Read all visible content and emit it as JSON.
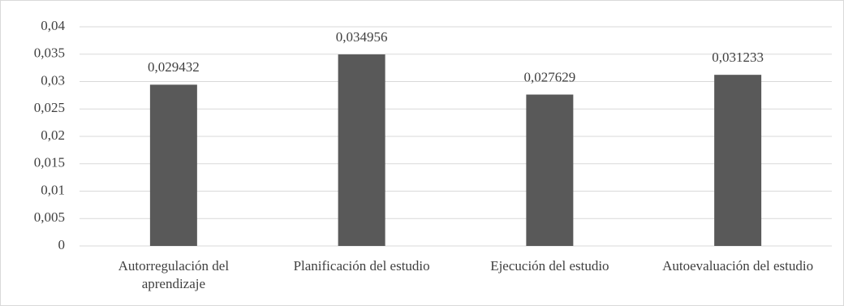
{
  "chart_data": {
    "type": "bar",
    "categories": [
      "Autorregulación del aprendizaje",
      "Planificación del estudio",
      "Ejecución del estudio",
      "Autoevaluación del estudio"
    ],
    "values": [
      0.029432,
      0.034956,
      0.027629,
      0.031233
    ],
    "value_labels": [
      "0,029432",
      "0,034956",
      "0,027629",
      "0,031233"
    ],
    "color": "#595959",
    "ylim": [
      0,
      0.04
    ],
    "yticks": [
      0,
      {
        "value": 0.005,
        "label": "0,005"
      },
      {
        "value": 0.01,
        "label": "0,01"
      },
      {
        "value": 0.015,
        "label": "0,015"
      },
      {
        "value": 0.02,
        "label": "0,02"
      },
      {
        "value": 0.025,
        "label": "0,025"
      },
      {
        "value": 0.03,
        "label": "0,03"
      },
      {
        "value": 0.035,
        "label": "0,035"
      },
      {
        "value": 0.04,
        "label": "0,04"
      }
    ],
    "grid": true
  }
}
